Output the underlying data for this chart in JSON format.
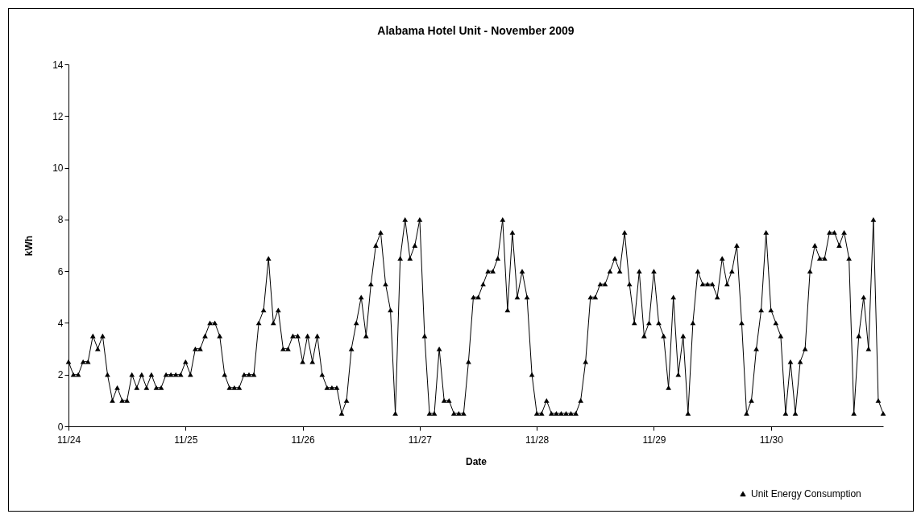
{
  "chart_data": {
    "type": "line",
    "title": "Alabama Hotel Unit - November 2009",
    "xlabel": "Date",
    "ylabel": "kWh",
    "categories": [
      "11/24",
      null,
      null,
      null,
      null,
      null,
      null,
      null,
      null,
      null,
      null,
      null,
      null,
      null,
      null,
      null,
      null,
      null,
      null,
      null,
      null,
      null,
      null,
      null,
      "11/25",
      null,
      null,
      null,
      null,
      null,
      null,
      null,
      null,
      null,
      null,
      null,
      null,
      null,
      null,
      null,
      null,
      null,
      null,
      null,
      null,
      null,
      null,
      null,
      "11/26",
      null,
      null,
      null,
      null,
      null,
      null,
      null,
      null,
      null,
      null,
      null,
      null,
      null,
      null,
      null,
      null,
      null,
      null,
      null,
      null,
      null,
      null,
      null,
      "11/27",
      null,
      null,
      null,
      null,
      null,
      null,
      null,
      null,
      null,
      null,
      null,
      null,
      null,
      null,
      null,
      null,
      null,
      null,
      null,
      null,
      null,
      null,
      null,
      "11/28",
      null,
      null,
      null,
      null,
      null,
      null,
      null,
      null,
      null,
      null,
      null,
      null,
      null,
      null,
      null,
      null,
      null,
      null,
      null,
      null,
      null,
      null,
      null,
      "11/29",
      null,
      null,
      null,
      null,
      null,
      null,
      null,
      null,
      null,
      null,
      null,
      null,
      null,
      null,
      null,
      null,
      null,
      null,
      null,
      null,
      null,
      null,
      null,
      "11/30",
      null,
      null,
      null,
      null,
      null,
      null,
      null,
      null,
      null,
      null,
      null,
      null,
      null,
      null,
      null,
      null,
      null,
      null,
      null,
      null,
      null,
      null,
      null
    ],
    "series": [
      {
        "name": "Unit Energy Consumption",
        "color": "#000000",
        "values": [
          2.5,
          2,
          2,
          2.5,
          2.5,
          3.5,
          3,
          3.5,
          2,
          1,
          1.5,
          1,
          1,
          2,
          1.5,
          2,
          1.5,
          2,
          1.5,
          1.5,
          2,
          2,
          2,
          2,
          2.5,
          2,
          3,
          3,
          3.5,
          4,
          4,
          3.5,
          2,
          1.5,
          1.5,
          1.5,
          2,
          2,
          2,
          4,
          4.5,
          6.5,
          4,
          4.5,
          3,
          3,
          3.5,
          3.5,
          2.5,
          3.5,
          2.5,
          3.5,
          2,
          1.5,
          1.5,
          1.5,
          0.5,
          1,
          3,
          4,
          5,
          3.5,
          5.5,
          7,
          7.5,
          5.5,
          4.5,
          0.5,
          6.5,
          8,
          6.5,
          7,
          8,
          3.5,
          0.5,
          0.5,
          3,
          1,
          1,
          0.5,
          0.5,
          0.5,
          2.5,
          5,
          5,
          5.5,
          6,
          6,
          6.5,
          8,
          4.5,
          7.5,
          5,
          6,
          5,
          2,
          0.5,
          0.5,
          1,
          0.5,
          0.5,
          0.5,
          0.5,
          0.5,
          0.5,
          1,
          2.5,
          5,
          5,
          5.5,
          5.5,
          6,
          6.5,
          6,
          7.5,
          5.5,
          4,
          6,
          3.5,
          4,
          6,
          4,
          3.5,
          1.5,
          5,
          2,
          3.5,
          0.5,
          4,
          6,
          5.5,
          5.5,
          5.5,
          5,
          6.5,
          5.5,
          6,
          7,
          4,
          0.5,
          1,
          3,
          4.5,
          7.5,
          4.5,
          4,
          3.5,
          0.5,
          2.5,
          0.5,
          2.5,
          3,
          6,
          7,
          6.5,
          6.5,
          7.5,
          7.5,
          7,
          7.5,
          6.5,
          0.5,
          3.5,
          5,
          3,
          8,
          1,
          0.5
        ]
      }
    ],
    "ylim": [
      0,
      14
    ],
    "yticks": [
      0,
      2,
      4,
      6,
      8,
      10,
      12,
      14
    ],
    "grid": false,
    "legend": "bottom right",
    "marker": "triangle",
    "line_style": "solid"
  }
}
